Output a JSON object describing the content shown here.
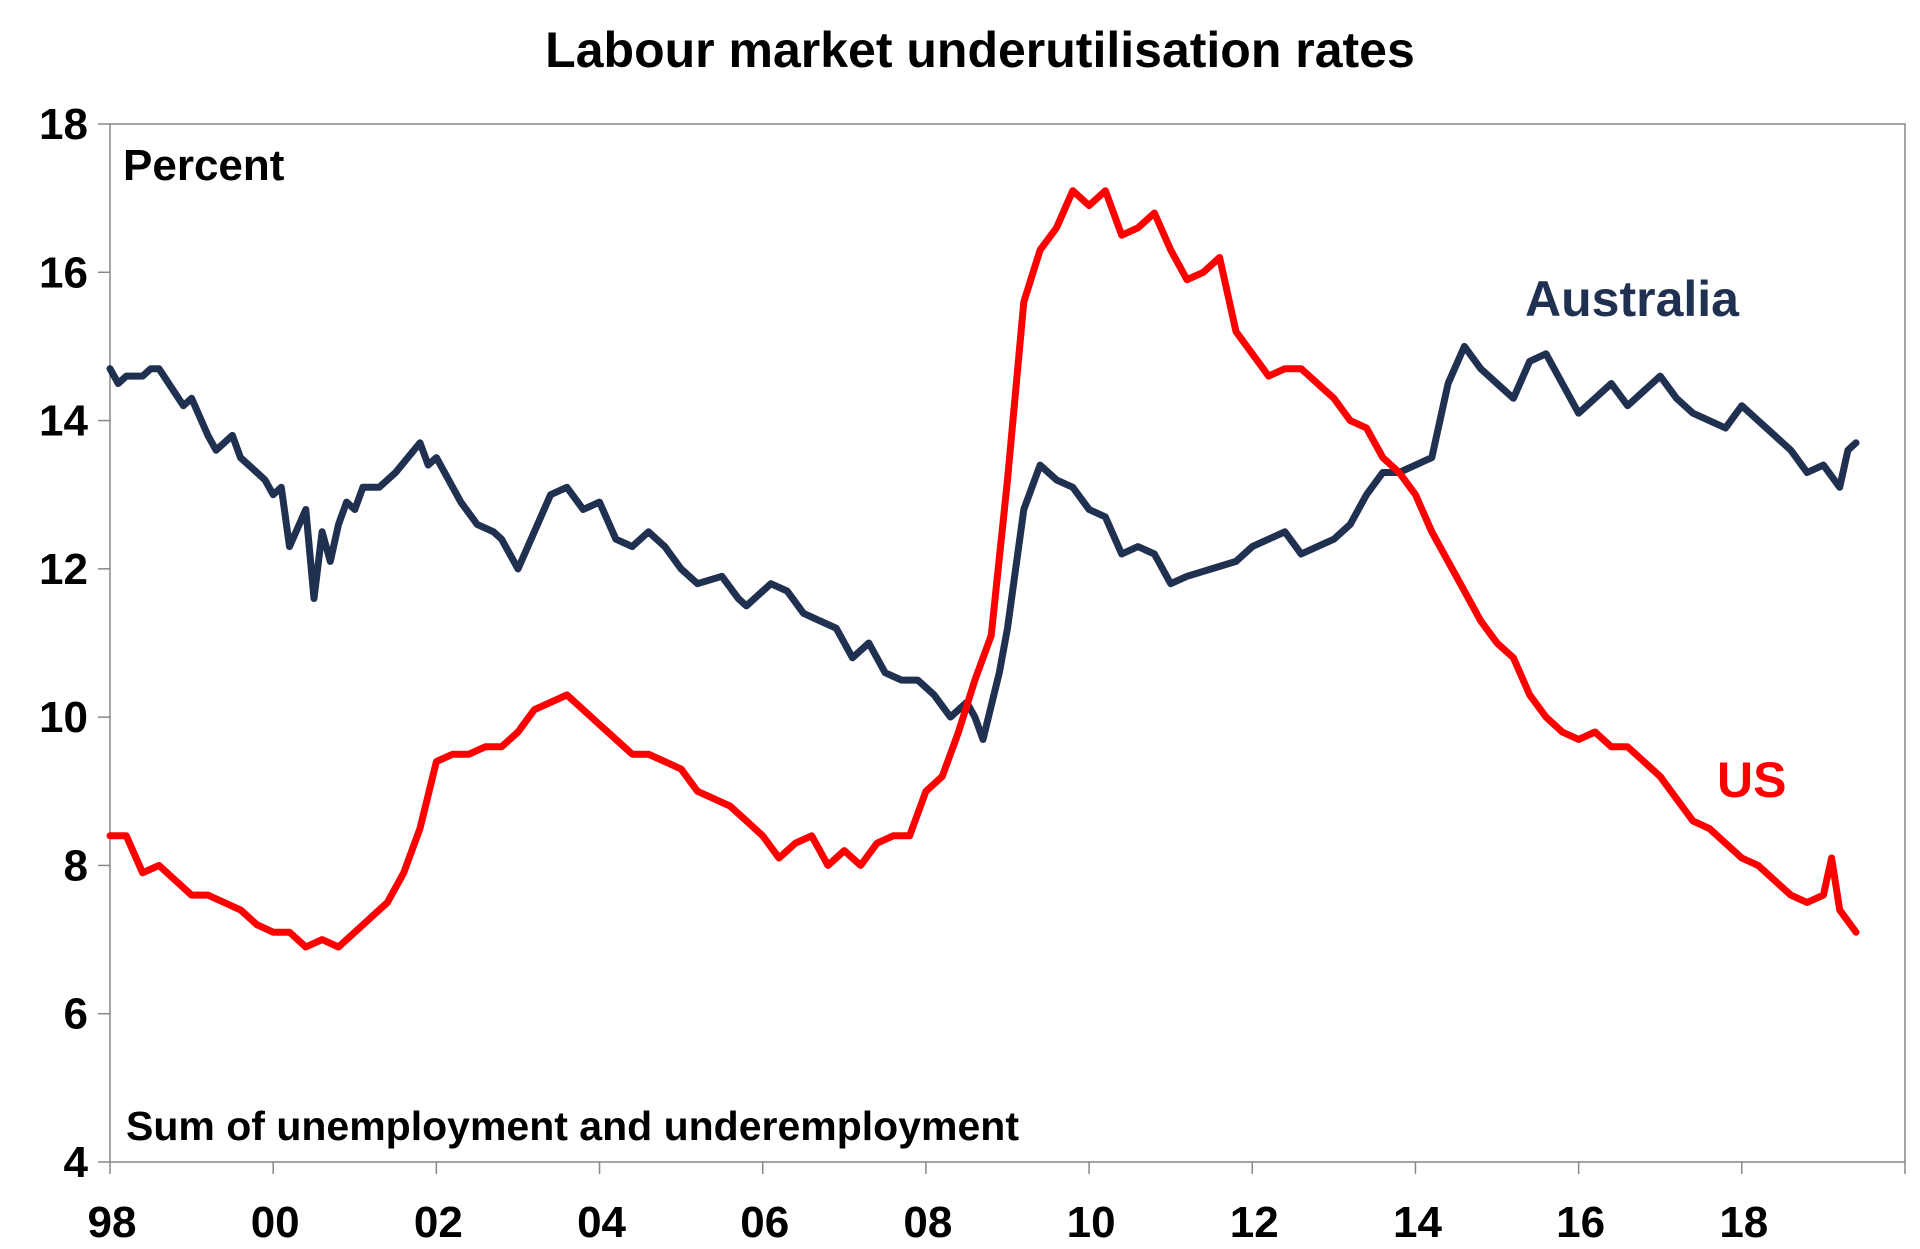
{
  "chart_data": {
    "type": "line",
    "title": "Labour market underutilisation rates",
    "ylabel": "Percent",
    "note": "Sum of unemployment and underemployment",
    "xlim": [
      1998,
      2020
    ],
    "ylim": [
      4,
      18
    ],
    "y_ticks": [
      4,
      6,
      8,
      10,
      12,
      14,
      16,
      18
    ],
    "x_ticks": [
      {
        "value": 1998,
        "label": "98"
      },
      {
        "value": 2000,
        "label": "00"
      },
      {
        "value": 2002,
        "label": "02"
      },
      {
        "value": 2004,
        "label": "04"
      },
      {
        "value": 2006,
        "label": "06"
      },
      {
        "value": 2008,
        "label": "08"
      },
      {
        "value": 2010,
        "label": "10"
      },
      {
        "value": 2012,
        "label": "12"
      },
      {
        "value": 2014,
        "label": "14"
      },
      {
        "value": 2016,
        "label": "16"
      },
      {
        "value": 2018,
        "label": "18"
      }
    ],
    "grid": false,
    "legend": "inline labels",
    "series": [
      {
        "name": "Australia",
        "color": "#1f3050",
        "x": [
          1998.0,
          1998.1,
          1998.2,
          1998.4,
          1998.5,
          1998.6,
          1998.9,
          1999.0,
          1999.2,
          1999.3,
          1999.5,
          1999.6,
          1999.8,
          1999.9,
          2000.0,
          2000.1,
          2000.2,
          2000.4,
          2000.5,
          2000.6,
          2000.7,
          2000.8,
          2000.9,
          2001.0,
          2001.1,
          2001.3,
          2001.5,
          2001.8,
          2001.9,
          2002.0,
          2002.3,
          2002.5,
          2002.7,
          2002.8,
          2003.0,
          2003.2,
          2003.4,
          2003.6,
          2003.8,
          2004.0,
          2004.2,
          2004.4,
          2004.6,
          2004.8,
          2005.0,
          2005.2,
          2005.5,
          2005.7,
          2005.8,
          2006.0,
          2006.1,
          2006.3,
          2006.5,
          2006.7,
          2006.9,
          2007.1,
          2007.3,
          2007.5,
          2007.7,
          2007.9,
          2008.1,
          2008.3,
          2008.5,
          2008.6,
          2008.7,
          2008.9,
          2009.0,
          2009.2,
          2009.4,
          2009.6,
          2009.8,
          2010.0,
          2010.2,
          2010.4,
          2010.6,
          2010.8,
          2011.0,
          2011.2,
          2011.5,
          2011.8,
          2012.0,
          2012.2,
          2012.4,
          2012.6,
          2012.8,
          2013.0,
          2013.2,
          2013.4,
          2013.6,
          2013.8,
          2014.0,
          2014.2,
          2014.4,
          2014.6,
          2014.8,
          2015.0,
          2015.2,
          2015.4,
          2015.6,
          2015.8,
          2016.0,
          2016.2,
          2016.4,
          2016.6,
          2016.8,
          2017.0,
          2017.2,
          2017.4,
          2017.6,
          2017.8,
          2018.0,
          2018.2,
          2018.4,
          2018.6,
          2018.8,
          2019.0,
          2019.2,
          2019.3,
          2019.4
        ],
        "y": [
          14.7,
          14.5,
          14.6,
          14.6,
          14.7,
          14.7,
          14.2,
          14.3,
          13.8,
          13.6,
          13.8,
          13.5,
          13.3,
          13.2,
          13.0,
          13.1,
          12.3,
          12.8,
          11.6,
          12.5,
          12.1,
          12.6,
          12.9,
          12.8,
          13.1,
          13.1,
          13.3,
          13.7,
          13.4,
          13.5,
          12.9,
          12.6,
          12.5,
          12.4,
          12.0,
          12.5,
          13.0,
          13.1,
          12.8,
          12.9,
          12.4,
          12.3,
          12.5,
          12.3,
          12.0,
          11.8,
          11.9,
          11.6,
          11.5,
          11.7,
          11.8,
          11.7,
          11.4,
          11.3,
          11.2,
          10.8,
          11.0,
          10.6,
          10.5,
          10.5,
          10.3,
          10.0,
          10.2,
          10.0,
          9.7,
          10.6,
          11.2,
          12.8,
          13.4,
          13.2,
          13.1,
          12.8,
          12.7,
          12.2,
          12.3,
          12.2,
          11.8,
          11.9,
          12.0,
          12.1,
          12.3,
          12.4,
          12.5,
          12.2,
          12.3,
          12.4,
          12.6,
          13.0,
          13.3,
          13.3,
          13.4,
          13.5,
          14.5,
          15.0,
          14.7,
          14.5,
          14.3,
          14.8,
          14.9,
          14.5,
          14.1,
          14.3,
          14.5,
          14.2,
          14.4,
          14.6,
          14.3,
          14.1,
          14.0,
          13.9,
          14.2,
          14.0,
          13.8,
          13.6,
          13.3,
          13.4,
          13.1,
          13.6,
          13.7
        ]
      },
      {
        "name": "US",
        "color": "#ff0000",
        "x": [
          1998.0,
          1998.2,
          1998.4,
          1998.6,
          1998.8,
          1999.0,
          1999.2,
          1999.4,
          1999.6,
          1999.8,
          2000.0,
          2000.2,
          2000.4,
          2000.6,
          2000.8,
          2001.0,
          2001.2,
          2001.4,
          2001.6,
          2001.8,
          2002.0,
          2002.2,
          2002.4,
          2002.6,
          2002.8,
          2003.0,
          2003.2,
          2003.4,
          2003.6,
          2003.8,
          2004.0,
          2004.2,
          2004.4,
          2004.6,
          2004.8,
          2005.0,
          2005.2,
          2005.4,
          2005.6,
          2005.8,
          2006.0,
          2006.2,
          2006.4,
          2006.6,
          2006.8,
          2007.0,
          2007.2,
          2007.4,
          2007.6,
          2007.8,
          2008.0,
          2008.2,
          2008.4,
          2008.6,
          2008.8,
          2009.0,
          2009.2,
          2009.4,
          2009.6,
          2009.8,
          2010.0,
          2010.2,
          2010.4,
          2010.6,
          2010.8,
          2011.0,
          2011.2,
          2011.4,
          2011.6,
          2011.8,
          2012.0,
          2012.2,
          2012.4,
          2012.6,
          2012.8,
          2013.0,
          2013.2,
          2013.4,
          2013.6,
          2013.8,
          2014.0,
          2014.2,
          2014.4,
          2014.6,
          2014.8,
          2015.0,
          2015.2,
          2015.4,
          2015.6,
          2015.8,
          2016.0,
          2016.2,
          2016.4,
          2016.6,
          2016.8,
          2017.0,
          2017.2,
          2017.4,
          2017.6,
          2017.8,
          2018.0,
          2018.2,
          2018.4,
          2018.6,
          2018.8,
          2019.0,
          2019.1,
          2019.2,
          2019.4
        ],
        "y": [
          8.4,
          8.4,
          7.9,
          8.0,
          7.8,
          7.6,
          7.6,
          7.5,
          7.4,
          7.2,
          7.1,
          7.1,
          6.9,
          7.0,
          6.9,
          7.1,
          7.3,
          7.5,
          7.9,
          8.5,
          9.4,
          9.5,
          9.5,
          9.6,
          9.6,
          9.8,
          10.1,
          10.2,
          10.3,
          10.1,
          9.9,
          9.7,
          9.5,
          9.5,
          9.4,
          9.3,
          9.0,
          8.9,
          8.8,
          8.6,
          8.4,
          8.1,
          8.3,
          8.4,
          8.0,
          8.2,
          8.0,
          8.3,
          8.4,
          8.4,
          9.0,
          9.2,
          9.8,
          10.5,
          11.1,
          13.2,
          15.6,
          16.3,
          16.6,
          17.1,
          16.9,
          17.1,
          16.5,
          16.6,
          16.8,
          16.3,
          15.9,
          16.0,
          16.2,
          15.2,
          14.9,
          14.6,
          14.7,
          14.7,
          14.5,
          14.3,
          14.0,
          13.9,
          13.5,
          13.3,
          13.0,
          12.5,
          12.1,
          11.7,
          11.3,
          11.0,
          10.8,
          10.3,
          10.0,
          9.8,
          9.7,
          9.8,
          9.6,
          9.6,
          9.4,
          9.2,
          8.9,
          8.6,
          8.5,
          8.3,
          8.1,
          8.0,
          7.8,
          7.6,
          7.5,
          7.6,
          8.1,
          7.4,
          7.1
        ]
      }
    ]
  }
}
